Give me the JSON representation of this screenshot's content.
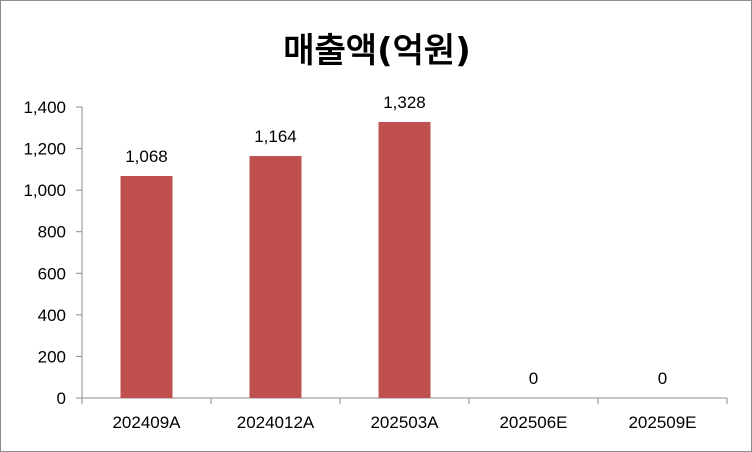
{
  "chart_data": {
    "type": "bar",
    "title": "매출액(억원)",
    "xlabel": "",
    "ylabel": "",
    "categories": [
      "202409A",
      "2024012A",
      "202503A",
      "202506E",
      "202509E"
    ],
    "values": [
      1068,
      1164,
      1328,
      0,
      0
    ],
    "value_labels": [
      "1,068",
      "1,164",
      "1,328",
      "0",
      "0"
    ],
    "ylim": [
      0,
      1400
    ],
    "yticks": [
      0,
      200,
      400,
      600,
      800,
      1000,
      1200,
      1400
    ],
    "ytick_labels": [
      "0",
      "200",
      "400",
      "600",
      "800",
      "1,000",
      "1,200",
      "1,400"
    ],
    "grid": false,
    "legend": "none",
    "bar_color": "#c0504d"
  }
}
